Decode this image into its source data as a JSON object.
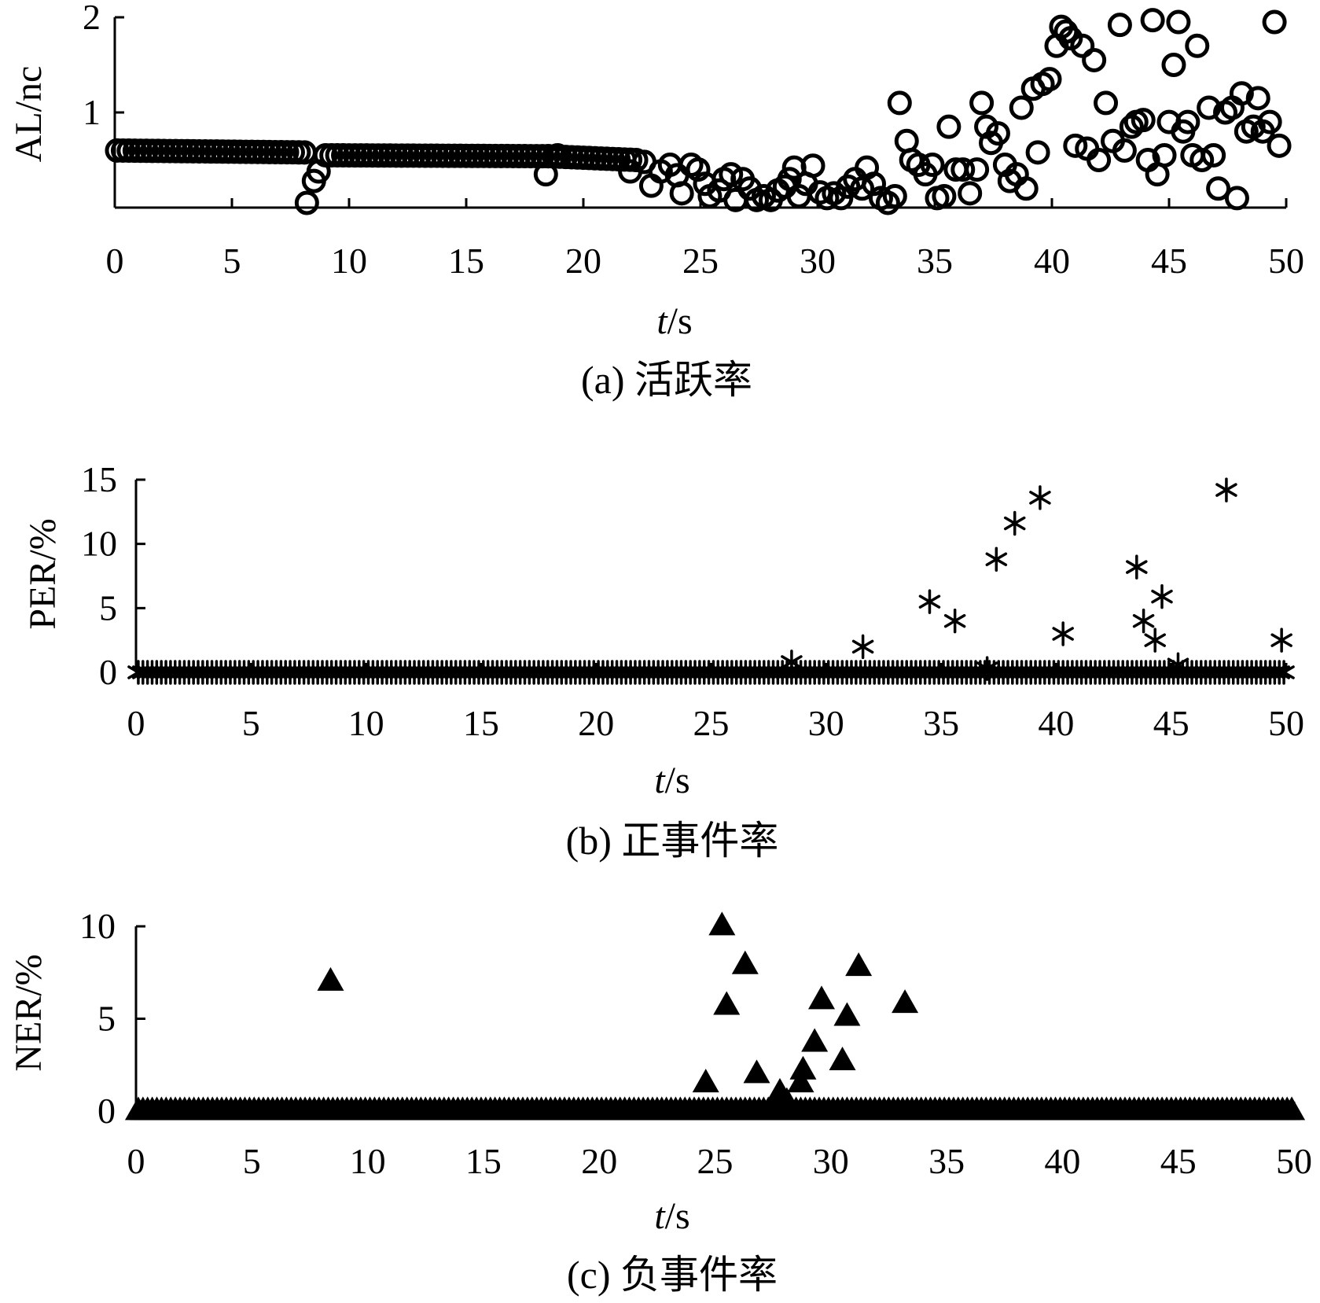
{
  "figure": {
    "panels": [
      {
        "caption": "(a) 活跃率",
        "ylabel": "AL/nc",
        "xlabel_var": "t",
        "xlabel_unit": "/s"
      },
      {
        "caption": "(b) 正事件率",
        "ylabel": "PER/%",
        "xlabel_var": "t",
        "xlabel_unit": "/s"
      },
      {
        "caption": "(c) 负事件率",
        "ylabel": "NER/%",
        "xlabel_var": "t",
        "xlabel_unit": "/s"
      }
    ]
  },
  "chart_data": [
    {
      "type": "scatter",
      "marker": "circle",
      "title": "(a) 活跃率",
      "xlabel": "t/s",
      "ylabel": "AL/nc",
      "xlim": [
        0,
        50
      ],
      "ylim": [
        0,
        2
      ],
      "xticks": [
        0,
        5,
        10,
        15,
        20,
        25,
        30,
        35,
        40,
        45,
        50
      ],
      "yticks": [
        1,
        2
      ],
      "grid": false,
      "series": [
        {
          "baseline_segments": [
            {
              "x_start": 0.1,
              "x_end": 8.0,
              "step": 0.25,
              "y_start": 0.6,
              "y_end": 0.58
            },
            {
              "x_start": 9.0,
              "x_end": 18.5,
              "step": 0.25,
              "y_start": 0.55,
              "y_end": 0.54
            },
            {
              "x_start": 18.5,
              "x_end": 22.3,
              "step": 0.25,
              "y_start": 0.54,
              "y_end": 0.5
            }
          ],
          "points": [
            [
              8.2,
              0.05
            ],
            [
              8.5,
              0.28
            ],
            [
              8.7,
              0.38
            ],
            [
              18.4,
              0.35
            ],
            [
              18.9,
              0.55
            ],
            [
              22.0,
              0.38
            ],
            [
              22.6,
              0.48
            ],
            [
              22.9,
              0.23
            ],
            [
              23.3,
              0.38
            ],
            [
              23.7,
              0.45
            ],
            [
              24.0,
              0.34
            ],
            [
              24.2,
              0.15
            ],
            [
              24.6,
              0.45
            ],
            [
              24.9,
              0.4
            ],
            [
              25.2,
              0.25
            ],
            [
              25.4,
              0.12
            ],
            [
              25.8,
              0.18
            ],
            [
              26.0,
              0.3
            ],
            [
              26.3,
              0.35
            ],
            [
              26.5,
              0.08
            ],
            [
              26.8,
              0.3
            ],
            [
              27.1,
              0.2
            ],
            [
              27.4,
              0.08
            ],
            [
              27.7,
              0.12
            ],
            [
              28.0,
              0.08
            ],
            [
              28.3,
              0.18
            ],
            [
              28.6,
              0.22
            ],
            [
              28.8,
              0.3
            ],
            [
              29.0,
              0.42
            ],
            [
              29.2,
              0.12
            ],
            [
              29.5,
              0.25
            ],
            [
              29.8,
              0.44
            ],
            [
              30.1,
              0.16
            ],
            [
              30.4,
              0.1
            ],
            [
              30.7,
              0.15
            ],
            [
              31.0,
              0.1
            ],
            [
              31.3,
              0.22
            ],
            [
              31.6,
              0.3
            ],
            [
              31.9,
              0.2
            ],
            [
              32.1,
              0.42
            ],
            [
              32.4,
              0.25
            ],
            [
              32.7,
              0.1
            ],
            [
              33.0,
              0.05
            ],
            [
              33.3,
              0.12
            ],
            [
              33.5,
              1.1
            ],
            [
              33.8,
              0.7
            ],
            [
              34.0,
              0.5
            ],
            [
              34.3,
              0.45
            ],
            [
              34.6,
              0.35
            ],
            [
              34.9,
              0.45
            ],
            [
              35.1,
              0.1
            ],
            [
              35.4,
              0.12
            ],
            [
              35.6,
              0.85
            ],
            [
              35.9,
              0.4
            ],
            [
              36.2,
              0.4
            ],
            [
              36.5,
              0.15
            ],
            [
              36.8,
              0.4
            ],
            [
              37.0,
              1.1
            ],
            [
              37.2,
              0.85
            ],
            [
              37.4,
              0.68
            ],
            [
              37.7,
              0.78
            ],
            [
              38.0,
              0.45
            ],
            [
              38.2,
              0.28
            ],
            [
              38.5,
              0.35
            ],
            [
              38.7,
              1.05
            ],
            [
              38.9,
              0.2
            ],
            [
              39.2,
              1.25
            ],
            [
              39.4,
              0.58
            ],
            [
              39.6,
              1.3
            ],
            [
              39.9,
              1.35
            ],
            [
              40.2,
              1.7
            ],
            [
              40.4,
              1.9
            ],
            [
              40.6,
              1.85
            ],
            [
              40.8,
              1.78
            ],
            [
              41.0,
              0.65
            ],
            [
              41.3,
              1.7
            ],
            [
              41.5,
              0.62
            ],
            [
              41.8,
              1.55
            ],
            [
              42.0,
              0.5
            ],
            [
              42.3,
              1.1
            ],
            [
              42.6,
              0.7
            ],
            [
              42.9,
              1.92
            ],
            [
              43.1,
              0.6
            ],
            [
              43.4,
              0.85
            ],
            [
              43.6,
              0.9
            ],
            [
              43.9,
              0.92
            ],
            [
              44.1,
              0.5
            ],
            [
              44.3,
              1.97
            ],
            [
              44.5,
              0.35
            ],
            [
              44.8,
              0.55
            ],
            [
              45.0,
              0.9
            ],
            [
              45.2,
              1.5
            ],
            [
              45.4,
              1.95
            ],
            [
              45.6,
              0.8
            ],
            [
              45.8,
              0.9
            ],
            [
              46.0,
              0.55
            ],
            [
              46.2,
              1.7
            ],
            [
              46.4,
              0.5
            ],
            [
              46.7,
              1.05
            ],
            [
              46.9,
              0.55
            ],
            [
              47.1,
              0.2
            ],
            [
              47.4,
              1.0
            ],
            [
              47.7,
              1.05
            ],
            [
              47.9,
              0.1
            ],
            [
              48.1,
              1.2
            ],
            [
              48.3,
              0.8
            ],
            [
              48.6,
              0.85
            ],
            [
              48.8,
              1.15
            ],
            [
              49.0,
              0.8
            ],
            [
              49.3,
              0.9
            ],
            [
              49.5,
              1.95
            ],
            [
              49.7,
              0.65
            ]
          ]
        }
      ]
    },
    {
      "type": "scatter",
      "marker": "asterisk",
      "title": "(b) 正事件率",
      "xlabel": "t/s",
      "ylabel": "PER/%",
      "xlim": [
        0,
        50
      ],
      "ylim": [
        0,
        15
      ],
      "xticks": [
        0,
        5,
        10,
        15,
        20,
        25,
        30,
        35,
        40,
        45,
        50
      ],
      "yticks": [
        0,
        5,
        10,
        15
      ],
      "grid": false,
      "series": [
        {
          "baseline": {
            "x_start": 0.1,
            "x_end": 49.9,
            "step": 0.2,
            "y": 0
          },
          "points": [
            [
              28.5,
              0.8
            ],
            [
              31.6,
              2.0
            ],
            [
              34.5,
              5.5
            ],
            [
              35.6,
              4.0
            ],
            [
              37.0,
              0.3
            ],
            [
              37.4,
              8.8
            ],
            [
              38.2,
              11.6
            ],
            [
              39.3,
              13.6
            ],
            [
              40.3,
              3.0
            ],
            [
              43.5,
              8.2
            ],
            [
              43.8,
              4.0
            ],
            [
              44.3,
              2.5
            ],
            [
              44.6,
              5.9
            ],
            [
              45.3,
              0.6
            ],
            [
              47.4,
              14.2
            ],
            [
              49.8,
              2.5
            ]
          ]
        }
      ]
    },
    {
      "type": "scatter",
      "marker": "triangle",
      "title": "(c) 负事件率",
      "xlabel": "t/s",
      "ylabel": "NER/%",
      "xlim": [
        0,
        50
      ],
      "ylim": [
        0,
        10
      ],
      "xticks": [
        0,
        5,
        10,
        15,
        20,
        25,
        30,
        35,
        40,
        45,
        50
      ],
      "yticks": [
        0,
        5,
        10
      ],
      "grid": false,
      "series": [
        {
          "baseline": {
            "x_start": 0.1,
            "x_end": 49.9,
            "step": 0.2,
            "y": 0
          },
          "points": [
            [
              8.4,
              7.0
            ],
            [
              24.6,
              1.5
            ],
            [
              25.3,
              10.0
            ],
            [
              25.5,
              5.7
            ],
            [
              26.3,
              7.9
            ],
            [
              26.8,
              2.0
            ],
            [
              27.8,
              1.0
            ],
            [
              28.1,
              0.5
            ],
            [
              28.7,
              1.5
            ],
            [
              28.8,
              2.2
            ],
            [
              29.3,
              3.7
            ],
            [
              29.6,
              6.0
            ],
            [
              30.5,
              2.7
            ],
            [
              30.7,
              5.1
            ],
            [
              31.2,
              7.8
            ],
            [
              33.2,
              5.8
            ]
          ]
        }
      ]
    }
  ]
}
